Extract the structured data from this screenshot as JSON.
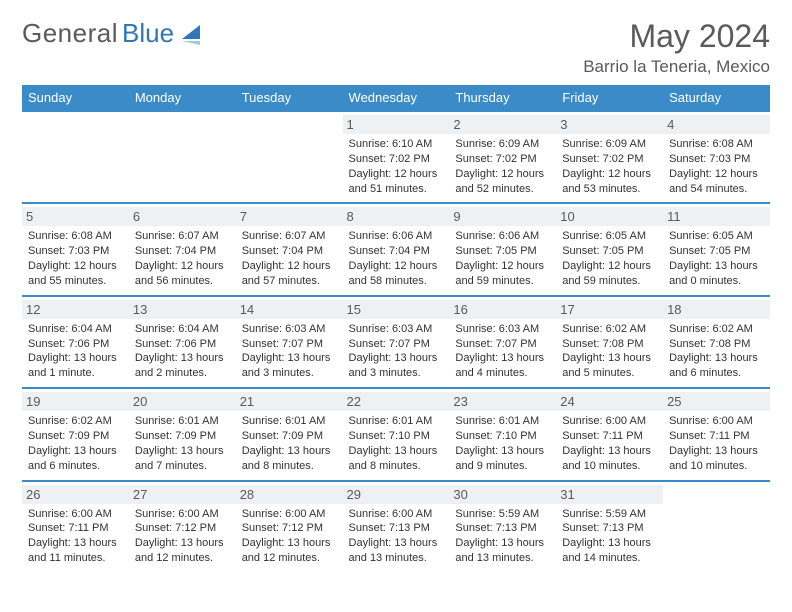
{
  "logo": {
    "text_gray": "General",
    "text_blue": "Blue"
  },
  "title": "May 2024",
  "location": "Barrio la Teneria, Mexico",
  "colors": {
    "header_bg": "#3b8bc9",
    "header_text": "#ffffff",
    "daynum_bg": "#eef1f3",
    "text_gray": "#5a5a5a",
    "logo_blue": "#2f77b7",
    "row_border": "#3b8bc9"
  },
  "weekdays": [
    "Sunday",
    "Monday",
    "Tuesday",
    "Wednesday",
    "Thursday",
    "Friday",
    "Saturday"
  ],
  "weeks": [
    [
      null,
      null,
      null,
      {
        "n": "1",
        "sr": "Sunrise: 6:10 AM",
        "ss": "Sunset: 7:02 PM",
        "dl1": "Daylight: 12 hours",
        "dl2": "and 51 minutes."
      },
      {
        "n": "2",
        "sr": "Sunrise: 6:09 AM",
        "ss": "Sunset: 7:02 PM",
        "dl1": "Daylight: 12 hours",
        "dl2": "and 52 minutes."
      },
      {
        "n": "3",
        "sr": "Sunrise: 6:09 AM",
        "ss": "Sunset: 7:02 PM",
        "dl1": "Daylight: 12 hours",
        "dl2": "and 53 minutes."
      },
      {
        "n": "4",
        "sr": "Sunrise: 6:08 AM",
        "ss": "Sunset: 7:03 PM",
        "dl1": "Daylight: 12 hours",
        "dl2": "and 54 minutes."
      }
    ],
    [
      {
        "n": "5",
        "sr": "Sunrise: 6:08 AM",
        "ss": "Sunset: 7:03 PM",
        "dl1": "Daylight: 12 hours",
        "dl2": "and 55 minutes."
      },
      {
        "n": "6",
        "sr": "Sunrise: 6:07 AM",
        "ss": "Sunset: 7:04 PM",
        "dl1": "Daylight: 12 hours",
        "dl2": "and 56 minutes."
      },
      {
        "n": "7",
        "sr": "Sunrise: 6:07 AM",
        "ss": "Sunset: 7:04 PM",
        "dl1": "Daylight: 12 hours",
        "dl2": "and 57 minutes."
      },
      {
        "n": "8",
        "sr": "Sunrise: 6:06 AM",
        "ss": "Sunset: 7:04 PM",
        "dl1": "Daylight: 12 hours",
        "dl2": "and 58 minutes."
      },
      {
        "n": "9",
        "sr": "Sunrise: 6:06 AM",
        "ss": "Sunset: 7:05 PM",
        "dl1": "Daylight: 12 hours",
        "dl2": "and 59 minutes."
      },
      {
        "n": "10",
        "sr": "Sunrise: 6:05 AM",
        "ss": "Sunset: 7:05 PM",
        "dl1": "Daylight: 12 hours",
        "dl2": "and 59 minutes."
      },
      {
        "n": "11",
        "sr": "Sunrise: 6:05 AM",
        "ss": "Sunset: 7:05 PM",
        "dl1": "Daylight: 13 hours",
        "dl2": "and 0 minutes."
      }
    ],
    [
      {
        "n": "12",
        "sr": "Sunrise: 6:04 AM",
        "ss": "Sunset: 7:06 PM",
        "dl1": "Daylight: 13 hours",
        "dl2": "and 1 minute."
      },
      {
        "n": "13",
        "sr": "Sunrise: 6:04 AM",
        "ss": "Sunset: 7:06 PM",
        "dl1": "Daylight: 13 hours",
        "dl2": "and 2 minutes."
      },
      {
        "n": "14",
        "sr": "Sunrise: 6:03 AM",
        "ss": "Sunset: 7:07 PM",
        "dl1": "Daylight: 13 hours",
        "dl2": "and 3 minutes."
      },
      {
        "n": "15",
        "sr": "Sunrise: 6:03 AM",
        "ss": "Sunset: 7:07 PM",
        "dl1": "Daylight: 13 hours",
        "dl2": "and 3 minutes."
      },
      {
        "n": "16",
        "sr": "Sunrise: 6:03 AM",
        "ss": "Sunset: 7:07 PM",
        "dl1": "Daylight: 13 hours",
        "dl2": "and 4 minutes."
      },
      {
        "n": "17",
        "sr": "Sunrise: 6:02 AM",
        "ss": "Sunset: 7:08 PM",
        "dl1": "Daylight: 13 hours",
        "dl2": "and 5 minutes."
      },
      {
        "n": "18",
        "sr": "Sunrise: 6:02 AM",
        "ss": "Sunset: 7:08 PM",
        "dl1": "Daylight: 13 hours",
        "dl2": "and 6 minutes."
      }
    ],
    [
      {
        "n": "19",
        "sr": "Sunrise: 6:02 AM",
        "ss": "Sunset: 7:09 PM",
        "dl1": "Daylight: 13 hours",
        "dl2": "and 6 minutes."
      },
      {
        "n": "20",
        "sr": "Sunrise: 6:01 AM",
        "ss": "Sunset: 7:09 PM",
        "dl1": "Daylight: 13 hours",
        "dl2": "and 7 minutes."
      },
      {
        "n": "21",
        "sr": "Sunrise: 6:01 AM",
        "ss": "Sunset: 7:09 PM",
        "dl1": "Daylight: 13 hours",
        "dl2": "and 8 minutes."
      },
      {
        "n": "22",
        "sr": "Sunrise: 6:01 AM",
        "ss": "Sunset: 7:10 PM",
        "dl1": "Daylight: 13 hours",
        "dl2": "and 8 minutes."
      },
      {
        "n": "23",
        "sr": "Sunrise: 6:01 AM",
        "ss": "Sunset: 7:10 PM",
        "dl1": "Daylight: 13 hours",
        "dl2": "and 9 minutes."
      },
      {
        "n": "24",
        "sr": "Sunrise: 6:00 AM",
        "ss": "Sunset: 7:11 PM",
        "dl1": "Daylight: 13 hours",
        "dl2": "and 10 minutes."
      },
      {
        "n": "25",
        "sr": "Sunrise: 6:00 AM",
        "ss": "Sunset: 7:11 PM",
        "dl1": "Daylight: 13 hours",
        "dl2": "and 10 minutes."
      }
    ],
    [
      {
        "n": "26",
        "sr": "Sunrise: 6:00 AM",
        "ss": "Sunset: 7:11 PM",
        "dl1": "Daylight: 13 hours",
        "dl2": "and 11 minutes."
      },
      {
        "n": "27",
        "sr": "Sunrise: 6:00 AM",
        "ss": "Sunset: 7:12 PM",
        "dl1": "Daylight: 13 hours",
        "dl2": "and 12 minutes."
      },
      {
        "n": "28",
        "sr": "Sunrise: 6:00 AM",
        "ss": "Sunset: 7:12 PM",
        "dl1": "Daylight: 13 hours",
        "dl2": "and 12 minutes."
      },
      {
        "n": "29",
        "sr": "Sunrise: 6:00 AM",
        "ss": "Sunset: 7:13 PM",
        "dl1": "Daylight: 13 hours",
        "dl2": "and 13 minutes."
      },
      {
        "n": "30",
        "sr": "Sunrise: 5:59 AM",
        "ss": "Sunset: 7:13 PM",
        "dl1": "Daylight: 13 hours",
        "dl2": "and 13 minutes."
      },
      {
        "n": "31",
        "sr": "Sunrise: 5:59 AM",
        "ss": "Sunset: 7:13 PM",
        "dl1": "Daylight: 13 hours",
        "dl2": "and 14 minutes."
      },
      null
    ]
  ]
}
